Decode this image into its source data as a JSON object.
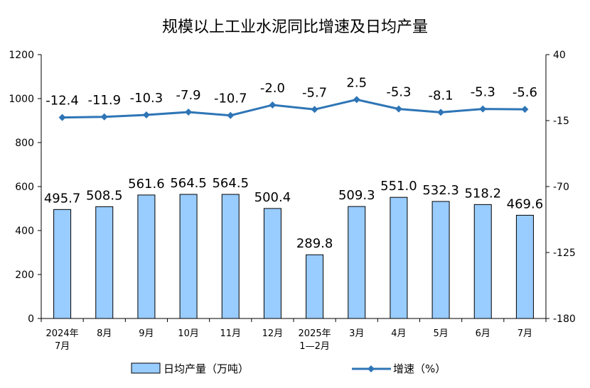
{
  "chart_data": {
    "type": "bar",
    "title": "规模以上工业水泥同比增速及日均产量",
    "categories": [
      "2024年|7月",
      "8月",
      "9月",
      "10月",
      "11月",
      "12月",
      "2025年|1—2月",
      "3月",
      "4月",
      "5月",
      "6月",
      "7月"
    ],
    "series": [
      {
        "name": "日均产量（万吨）",
        "type": "bar",
        "axis": "left",
        "color": "#99CCFF",
        "values": [
          495.7,
          508.5,
          561.6,
          564.5,
          564.5,
          500.4,
          289.8,
          509.3,
          551.0,
          532.3,
          518.2,
          469.6
        ],
        "labels": [
          "495.7",
          "508.5",
          "561.6",
          "564.5",
          "564.5",
          "500.4",
          "289.8",
          "509.3",
          "551.0",
          "532.3",
          "518.2",
          "469.6"
        ]
      },
      {
        "name": "增速（%）",
        "type": "line",
        "axis": "right",
        "color": "#2E75B6",
        "values": [
          -12.4,
          -11.9,
          -10.3,
          -7.9,
          -10.7,
          -2.0,
          -5.7,
          2.5,
          -5.3,
          -8.1,
          -5.3,
          -5.6
        ],
        "labels": [
          "-12.4",
          "-11.9",
          "-10.3",
          "-7.9",
          "-10.7",
          "-2.0",
          "-5.7",
          "2.5",
          "-5.3",
          "-8.1",
          "-5.3",
          "-5.6"
        ]
      }
    ],
    "y_left": {
      "min": 0,
      "max": 1200,
      "ticks": [
        "0",
        "200",
        "400",
        "600",
        "800",
        "1000",
        "1200"
      ]
    },
    "y_right": {
      "min": -180,
      "max": 40,
      "ticks": [
        "-180",
        "-125",
        "-70",
        "-15",
        "40"
      ]
    },
    "grid": false,
    "legend_position": "bottom"
  }
}
